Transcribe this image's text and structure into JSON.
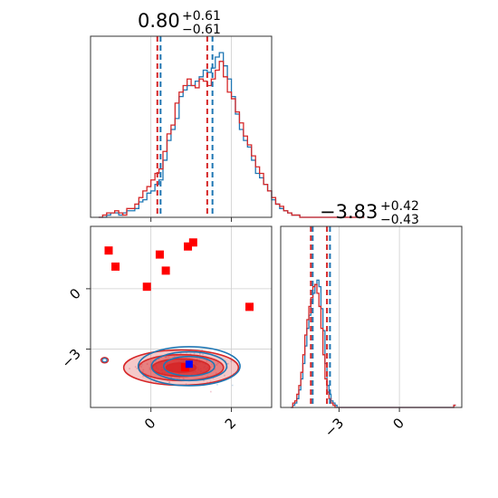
{
  "chart_data": {
    "type": "corner",
    "parameters": 2,
    "titles": [
      {
        "value": "0.80",
        "plus": "+0.61",
        "minus": "−0.61"
      },
      {
        "value": "−3.83",
        "plus": "+0.42",
        "minus": "−0.43"
      }
    ],
    "x_param0": {
      "lim": [
        -1.5,
        3.0
      ],
      "ticks": [
        0,
        2
      ],
      "tick_labels": [
        "0",
        "2"
      ]
    },
    "x_param1": {
      "lim": [
        -5.9,
        3.1
      ],
      "ticks": [
        -3,
        0
      ],
      "tick_labels": [
        "−3",
        "0"
      ]
    },
    "y_param1": {
      "lim": [
        -5.9,
        3.1
      ],
      "ticks": [
        -3,
        0
      ],
      "tick_labels": [
        "−3",
        "0"
      ]
    },
    "series": [
      {
        "color": "#1f77b4",
        "quantiles_param0": [
          0.24,
          1.53
        ],
        "quantiles_param1": [
          -4.31,
          -3.45
        ],
        "contour_center": [
          0.95,
          -3.85
        ],
        "contour_sigma": [
          0.55,
          0.42
        ]
      },
      {
        "color": "#d62728",
        "quantiles_param0": [
          0.16,
          1.4
        ],
        "quantiles_param1": [
          -4.4,
          -3.6
        ],
        "contour_center": [
          0.75,
          -3.92
        ],
        "contour_sigma": [
          0.62,
          0.38
        ]
      }
    ],
    "hist_param0": {
      "bin_edges_start": -1.3,
      "bin_width": 0.1,
      "blue": [
        0,
        0,
        1,
        2,
        2,
        1,
        2,
        3,
        3,
        4,
        7,
        8,
        11,
        12,
        15,
        17,
        26,
        35,
        40,
        45,
        55,
        58,
        60,
        60,
        62,
        64,
        67,
        66,
        68,
        73,
        75,
        69,
        63,
        55,
        47,
        40,
        35,
        32,
        26,
        20,
        18,
        15,
        12,
        8,
        6,
        4,
        3,
        2,
        1,
        1,
        0,
        0,
        0,
        0,
        0,
        0,
        0,
        0,
        0,
        0,
        0,
        0,
        0,
        0,
        0,
        0
      ],
      "red": [
        0,
        1,
        2,
        2,
        3,
        2,
        1,
        4,
        4,
        6,
        9,
        12,
        14,
        17,
        20,
        22,
        30,
        38,
        42,
        52,
        57,
        60,
        63,
        60,
        59,
        63,
        62,
        60,
        63,
        67,
        71,
        64,
        57,
        54,
        48,
        43,
        37,
        33,
        28,
        23,
        20,
        15,
        12,
        9,
        6,
        5,
        3,
        2,
        1,
        1,
        0,
        0,
        0,
        0,
        0,
        0,
        0,
        0,
        0,
        0,
        0,
        0,
        0,
        0,
        0,
        0
      ]
    },
    "hist_param1": {
      "bin_edges_start": -5.4,
      "bin_width": 0.1,
      "blue": [
        0,
        1,
        2,
        4,
        8,
        13,
        20,
        28,
        36,
        42,
        48,
        52,
        56,
        58,
        55,
        45,
        35,
        20,
        10,
        6,
        3,
        2,
        1,
        0,
        0,
        0,
        0,
        0,
        0,
        0,
        0,
        0,
        0,
        0,
        0,
        0,
        0,
        0,
        0,
        0,
        0,
        0,
        0,
        0,
        0,
        0,
        0,
        0,
        0,
        0,
        0,
        0,
        0,
        0,
        0,
        0,
        0,
        0,
        0,
        0,
        0,
        0,
        0,
        0,
        0,
        0,
        0,
        0,
        0,
        0,
        0,
        0,
        0,
        0,
        0,
        0,
        0,
        0,
        0,
        0,
        0,
        1
      ],
      "red": [
        0,
        2,
        3,
        6,
        10,
        16,
        24,
        33,
        40,
        46,
        50,
        55,
        56,
        52,
        46,
        36,
        24,
        13,
        7,
        4,
        2,
        1,
        0,
        0,
        0,
        0,
        0,
        0,
        0,
        0,
        0,
        0,
        0,
        0,
        0,
        0,
        0,
        0,
        0,
        0,
        0,
        0,
        0,
        0,
        0,
        0,
        0,
        0,
        0,
        0,
        0,
        0,
        0,
        0,
        0,
        0,
        0,
        0,
        0,
        0,
        0,
        0,
        0,
        0,
        0,
        0,
        0,
        0,
        0,
        0,
        0,
        0,
        0,
        0,
        0,
        0,
        0,
        0,
        0,
        0,
        0,
        1
      ]
    },
    "red_markers": [
      [
        -1.05,
        1.9
      ],
      [
        -0.88,
        1.1
      ],
      [
        0.22,
        1.7
      ],
      [
        0.37,
        0.9
      ],
      [
        -0.1,
        0.1
      ],
      [
        0.92,
        2.1
      ],
      [
        1.05,
        2.3
      ],
      [
        2.45,
        -0.9
      ],
      [
        0.85,
        -3.9
      ]
    ],
    "blue_markers": [
      [
        0.95,
        -3.75
      ]
    ]
  }
}
